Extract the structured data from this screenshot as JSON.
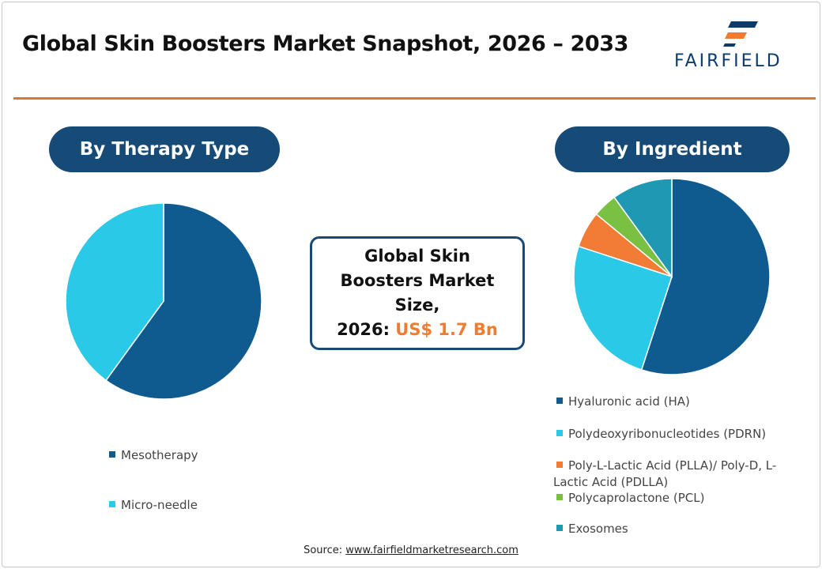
{
  "header": {
    "title": "Global Skin Boosters Market Snapshot, 2026 – 2033",
    "logo_text": "FAIRFIELD"
  },
  "center_box": {
    "line1": "Global Skin",
    "line2": "Boosters Market",
    "line3": "Size,",
    "year_label": "2026:",
    "value": "US$ 1.7 Bn"
  },
  "source": {
    "label": "Source:",
    "link": "www.fairfieldmarketresearch.com"
  },
  "chart_data": [
    {
      "type": "pie",
      "title": "By Therapy Type",
      "labels": [
        "Mesotherapy",
        "Micro-needle"
      ],
      "values": [
        60,
        40
      ],
      "colors": [
        "#0f5a8e",
        "#2bc9e8"
      ],
      "legend_position": "bottom"
    },
    {
      "type": "pie",
      "title": "By Ingredient",
      "labels": [
        "Hyaluronic acid (HA)",
        "Polydeoxyribonucleotides (PDRN)",
        "Poly-L-Lactic Acid (PLLA)/ Poly-D, L-Lactic Acid (PDLLA)",
        "Polycaprolactone (PCL)",
        "Exosomes"
      ],
      "legend_lines": [
        [
          "Hyaluronic acid (HA)"
        ],
        [
          "Polydeoxyribonucleotides (PDRN)"
        ],
        [
          "Poly-L-Lactic Acid (PLLA)/ Poly-D, L-",
          "Lactic Acid (PDLLA)"
        ],
        [
          "Polycaprolactone (PCL)"
        ],
        [
          "Exosomes"
        ]
      ],
      "values": [
        55,
        25,
        6,
        4,
        10
      ],
      "colors": [
        "#0f5a8e",
        "#2bc9e8",
        "#f27b35",
        "#7ac143",
        "#1f99b3"
      ],
      "legend_position": "bottom"
    }
  ]
}
